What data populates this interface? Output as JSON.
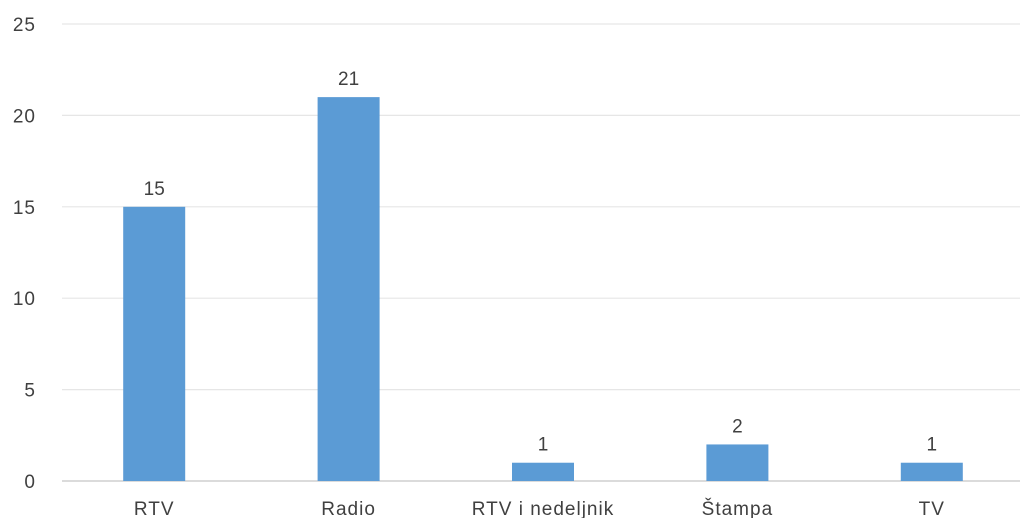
{
  "chart_data": {
    "type": "bar",
    "title": "",
    "xlabel": "",
    "ylabel": "",
    "categories": [
      "RTV",
      "Radio",
      "RTV i nedeljnik",
      "Štampa",
      "TV"
    ],
    "values": [
      15,
      21,
      1,
      2,
      1
    ],
    "data_labels": [
      "15",
      "21",
      "1",
      "2",
      "1"
    ],
    "ylim": [
      0,
      25
    ],
    "yticks": [
      0,
      5,
      10,
      15,
      20,
      25
    ],
    "ytick_labels": [
      "0",
      "5",
      "10",
      "15",
      "20",
      "25"
    ],
    "grid": true,
    "legend": "none",
    "bar_color": "#5B9BD5"
  }
}
